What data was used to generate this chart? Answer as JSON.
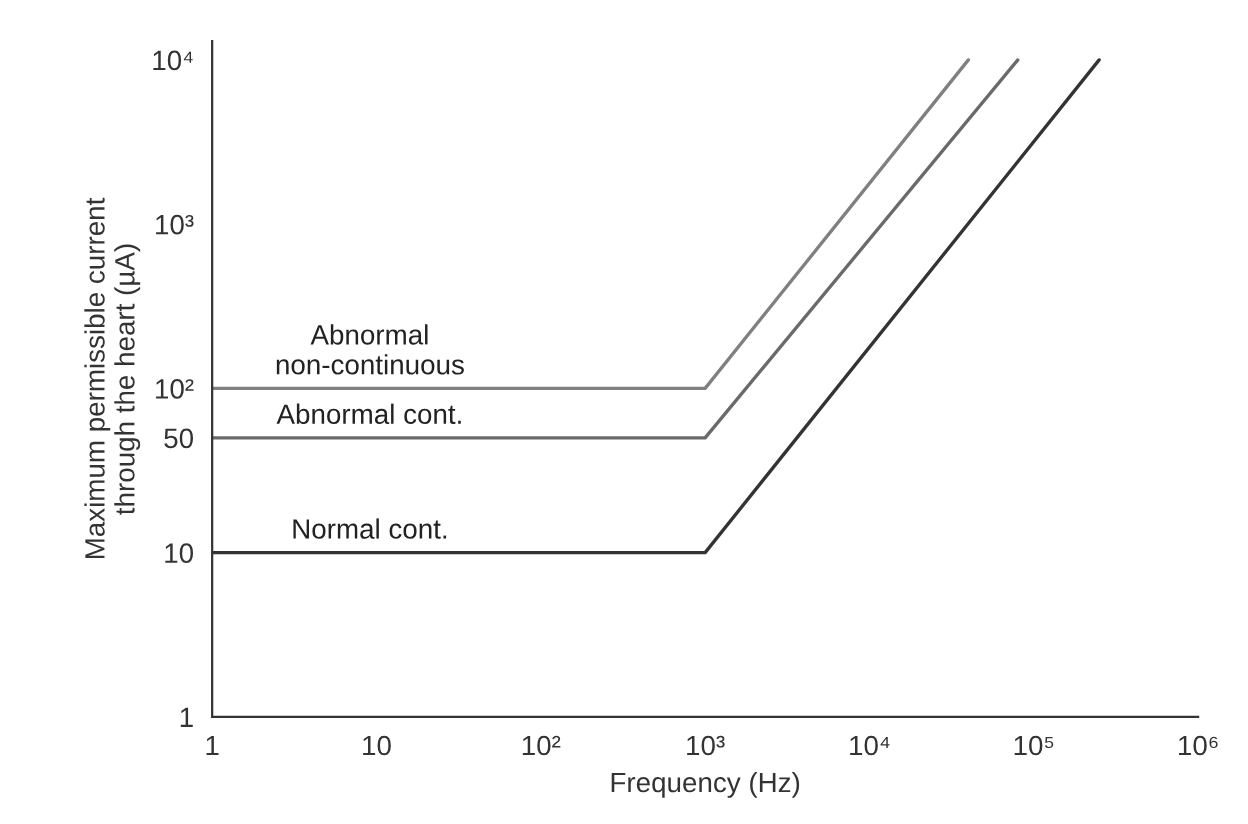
{
  "chart_data": {
    "type": "line",
    "xlabel": "Frequency (Hz)",
    "ylabel": "Maximum permissible current\nthrough the heart (µA)",
    "log": "xy",
    "grid": false,
    "marker": "none",
    "line_style": "solid",
    "xlim": [
      1,
      1000000
    ],
    "ylim": [
      1,
      13000
    ],
    "xticks": [
      1,
      10,
      {
        "value": 100,
        "label": "10²"
      },
      {
        "value": 1000,
        "label": "10³"
      },
      {
        "value": 10000,
        "label": "10⁴"
      },
      {
        "value": 100000,
        "label": "10⁵"
      },
      {
        "value": 1000000,
        "label": "10⁶"
      }
    ],
    "yticks": [
      1,
      10,
      50,
      {
        "value": 100,
        "label": "10²"
      },
      {
        "value": 1000,
        "label": "10³"
      },
      {
        "value": 10000,
        "label": "10⁴"
      }
    ],
    "series": [
      {
        "name": "Abnormal\nnon-continuous",
        "color": "#808080",
        "x": [
          1,
          1000,
          40000
        ],
        "values": [
          100,
          100,
          10000
        ]
      },
      {
        "name": "Abnormal cont.",
        "color": "#6a6a6a",
        "x": [
          1,
          1000,
          80000
        ],
        "values": [
          50,
          50,
          10000
        ]
      },
      {
        "name": "Normal cont.",
        "color": "#333333",
        "x": [
          1,
          1000,
          250000
        ],
        "values": [
          10,
          10,
          10000
        ]
      }
    ]
  }
}
